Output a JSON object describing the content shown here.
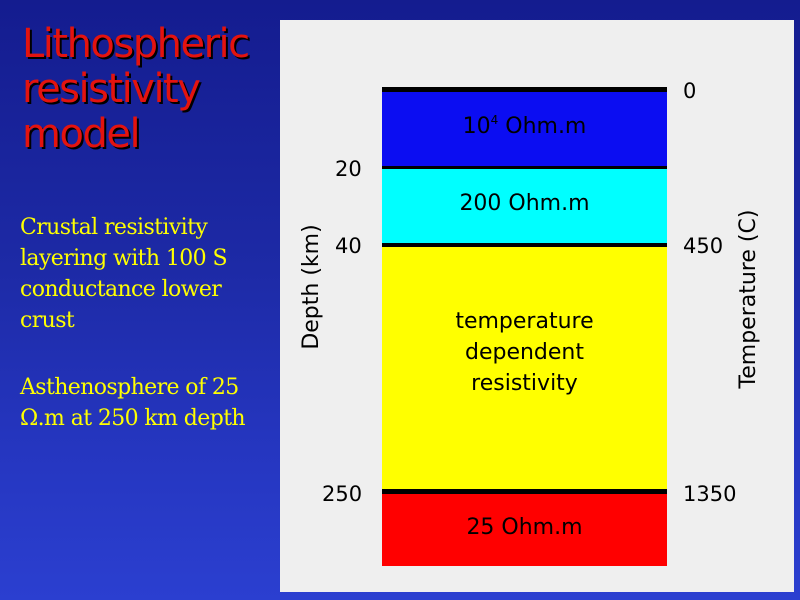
{
  "title": "Lithospheric resistivity model",
  "side_text": {
    "crust": "Crustal resistivity layering with 100 S conductance lower crust",
    "asthenosphere": "Asthenosphere of 25 Ω.m at 250 km depth"
  },
  "diagram": {
    "y_axis_label": "Depth (km)",
    "y2_axis_label": "Temperature (C)",
    "depth_ticks": [
      "20",
      "40",
      "250"
    ],
    "temperature_ticks": [
      "0",
      "450",
      "1350"
    ],
    "layers": [
      {
        "label_base": "10",
        "label_exp": "4",
        "label_unit": "Ohm.m",
        "color": "#0b0df2"
      },
      {
        "label": "200 Ohm.m",
        "color": "#00ffff"
      },
      {
        "label": "temperature\ndependent\nresistivity",
        "color": "#ffff00"
      },
      {
        "label": "25 Ohm.m",
        "color": "#ff0000"
      }
    ]
  }
}
